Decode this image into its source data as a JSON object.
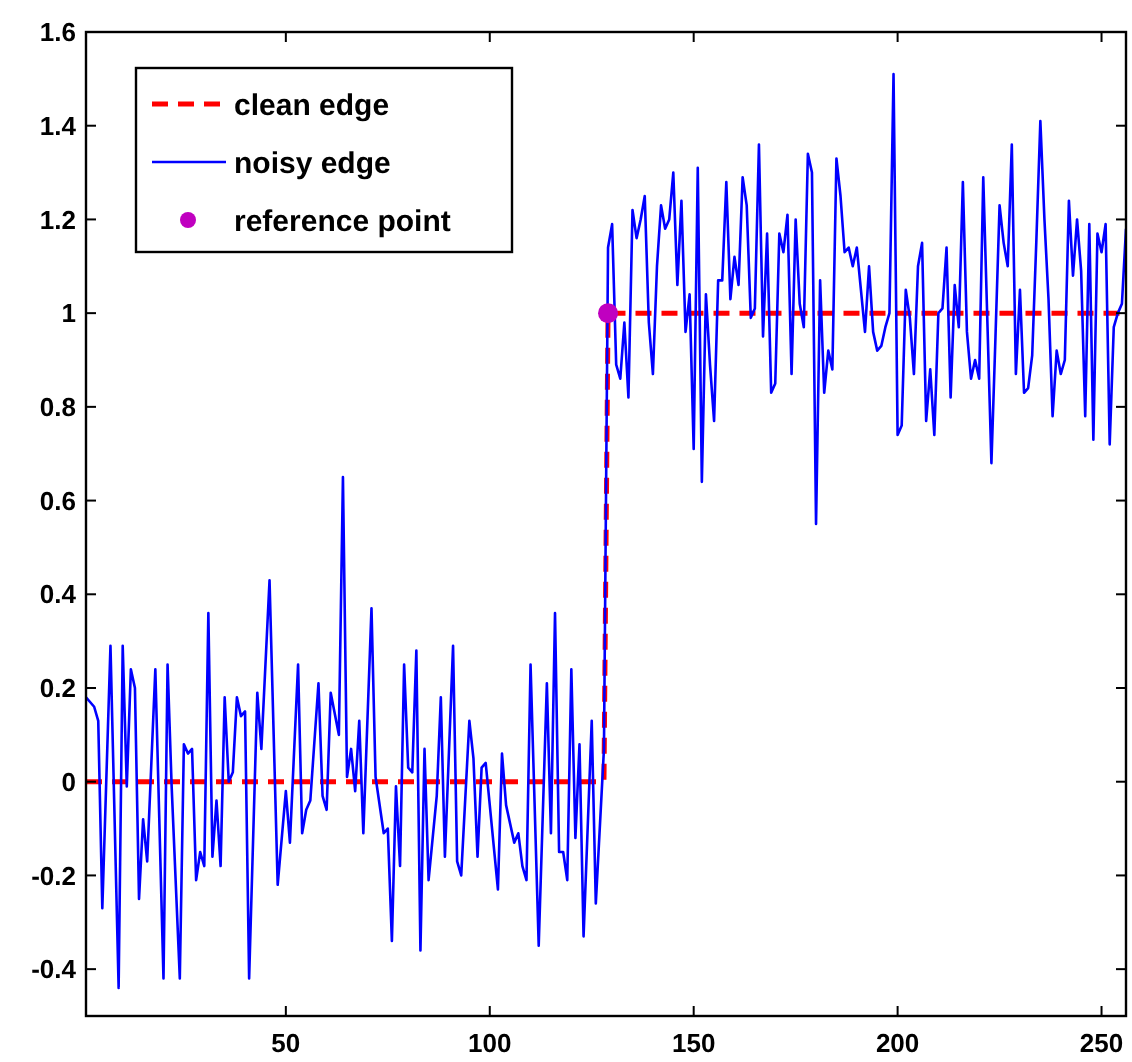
{
  "chart_data": {
    "type": "line",
    "xlim": [
      1,
      256
    ],
    "ylim": [
      -0.5,
      1.6
    ],
    "xticks": [
      50,
      100,
      150,
      200,
      250
    ],
    "yticks": [
      {
        "value": -0.4,
        "label": "-0.4"
      },
      {
        "value": -0.2,
        "label": "-0.2"
      },
      0,
      0.2,
      0.4,
      0.6,
      0.8,
      1,
      1.2,
      1.4,
      1.6
    ],
    "grid": false,
    "legend": "top left",
    "series": [
      {
        "name": "clean edge",
        "line_style": "dashed",
        "color": "#ff0000",
        "x": [
          1,
          128,
          129,
          256
        ],
        "values": [
          0,
          0,
          1,
          1
        ]
      },
      {
        "name": "noisy edge",
        "line_style": "solid",
        "color": "#0000ff",
        "x": [
          1,
          3,
          4,
          5,
          7,
          9,
          10,
          11,
          12,
          13,
          14,
          15,
          16,
          18,
          20,
          21,
          22,
          24,
          25,
          26,
          27,
          28,
          29,
          30,
          31,
          32,
          33,
          34,
          35,
          36,
          37,
          38,
          39,
          40,
          41,
          43,
          44,
          46,
          48,
          50,
          51,
          53,
          54,
          55,
          56,
          58,
          59,
          60,
          61,
          63,
          64,
          65,
          66,
          67,
          68,
          69,
          71,
          72,
          74,
          75,
          76,
          77,
          78,
          79,
          80,
          81,
          82,
          83,
          84,
          85,
          87,
          88,
          89,
          91,
          92,
          93,
          95,
          96,
          97,
          98,
          99,
          102,
          103,
          104,
          106,
          107,
          108,
          109,
          110,
          112,
          114,
          115,
          116,
          117,
          118,
          119,
          120,
          121,
          122,
          123,
          125,
          126,
          128,
          129,
          130,
          131,
          132,
          133,
          134,
          135,
          136,
          137,
          138,
          139,
          140,
          141,
          142,
          143,
          144,
          145,
          146,
          147,
          148,
          149,
          150,
          151,
          152,
          153,
          154,
          155,
          156,
          157,
          158,
          159,
          160,
          161,
          162,
          163,
          164,
          165,
          166,
          167,
          168,
          169,
          170,
          171,
          172,
          173,
          174,
          175,
          176,
          177,
          178,
          179,
          180,
          181,
          182,
          183,
          184,
          185,
          186,
          187,
          188,
          189,
          190,
          191,
          192,
          193,
          194,
          195,
          196,
          197,
          198,
          199,
          200,
          201,
          202,
          203,
          204,
          205,
          206,
          207,
          208,
          209,
          210,
          211,
          212,
          213,
          214,
          215,
          216,
          217,
          218,
          219,
          220,
          221,
          223,
          224,
          225,
          226,
          227,
          228,
          229,
          230,
          231,
          232,
          233,
          234,
          235,
          236,
          237,
          238,
          239,
          240,
          241,
          242,
          243,
          244,
          245,
          246,
          247,
          248,
          249,
          250,
          251,
          252,
          253,
          254,
          255,
          256
        ],
        "values": [
          0.18,
          0.16,
          0.13,
          -0.27,
          0.29,
          -0.44,
          0.29,
          -0.01,
          0.24,
          0.2,
          -0.25,
          -0.08,
          -0.17,
          0.24,
          -0.42,
          0.25,
          -0.01,
          -0.42,
          0.08,
          0.06,
          0.07,
          -0.21,
          -0.15,
          -0.18,
          0.36,
          -0.16,
          -0.04,
          -0.18,
          0.18,
          0,
          0.02,
          0.18,
          0.14,
          0.15,
          -0.42,
          0.19,
          0.07,
          0.43,
          -0.22,
          -0.02,
          -0.13,
          0.25,
          -0.11,
          -0.06,
          -0.04,
          0.21,
          -0.03,
          -0.06,
          0.19,
          0.1,
          0.65,
          0.01,
          0.07,
          -0.02,
          0.13,
          -0.11,
          0.37,
          0.01,
          -0.11,
          -0.1,
          -0.34,
          -0.01,
          -0.18,
          0.25,
          0.03,
          0.02,
          0.28,
          -0.36,
          0.07,
          -0.21,
          -0.03,
          0.18,
          -0.16,
          0.29,
          -0.17,
          -0.2,
          0.13,
          0.05,
          -0.16,
          0.03,
          0.04,
          -0.23,
          0.06,
          -0.05,
          -0.13,
          -0.11,
          -0.18,
          -0.21,
          0.25,
          -0.35,
          0.21,
          -0.11,
          0.36,
          -0.15,
          -0.15,
          -0.21,
          0.24,
          -0.12,
          0.08,
          -0.33,
          0.13,
          -0.26,
          0.07,
          1.14,
          1.19,
          0.89,
          0.86,
          0.98,
          0.82,
          1.22,
          1.16,
          1.2,
          1.25,
          0.98,
          0.87,
          1.1,
          1.23,
          1.18,
          1.2,
          1.3,
          1.06,
          1.24,
          0.96,
          1.04,
          0.71,
          1.31,
          0.64,
          1.04,
          0.89,
          0.77,
          1.07,
          1.07,
          1.28,
          1.03,
          1.12,
          1.06,
          1.29,
          1.23,
          0.99,
          1.01,
          1.36,
          0.95,
          1.17,
          0.83,
          0.85,
          1.17,
          1.13,
          1.21,
          0.87,
          1.2,
          1.02,
          0.97,
          1.34,
          1.3,
          0.55,
          1.07,
          0.83,
          0.92,
          0.88,
          1.33,
          1.25,
          1.13,
          1.14,
          1.1,
          1.14,
          1.05,
          0.96,
          1.1,
          0.96,
          0.92,
          0.93,
          0.97,
          1,
          1.51,
          0.74,
          0.76,
          1.05,
          0.99,
          0.87,
          1.1,
          1.15,
          0.77,
          0.88,
          0.74,
          1,
          1.01,
          1.14,
          0.82,
          1.06,
          0.97,
          1.28,
          0.96,
          0.86,
          0.9,
          0.86,
          1.29,
          0.68,
          0.95,
          1.23,
          1.15,
          1.1,
          1.36,
          0.87,
          1.05,
          0.83,
          0.84,
          0.91,
          1.15,
          1.41,
          1.2,
          1.03,
          0.78,
          0.92,
          0.87,
          0.9,
          1.24,
          1.08,
          1.2,
          1.09,
          0.78,
          1.19,
          0.73,
          1.17,
          1.13,
          1.19,
          0.72,
          0.97,
          1,
          1.02,
          1.18
        ]
      },
      {
        "name": "reference point",
        "type": "scatter",
        "marker": "circle",
        "color": "#c000c0",
        "x": [
          129
        ],
        "values": [
          1
        ]
      }
    ]
  }
}
